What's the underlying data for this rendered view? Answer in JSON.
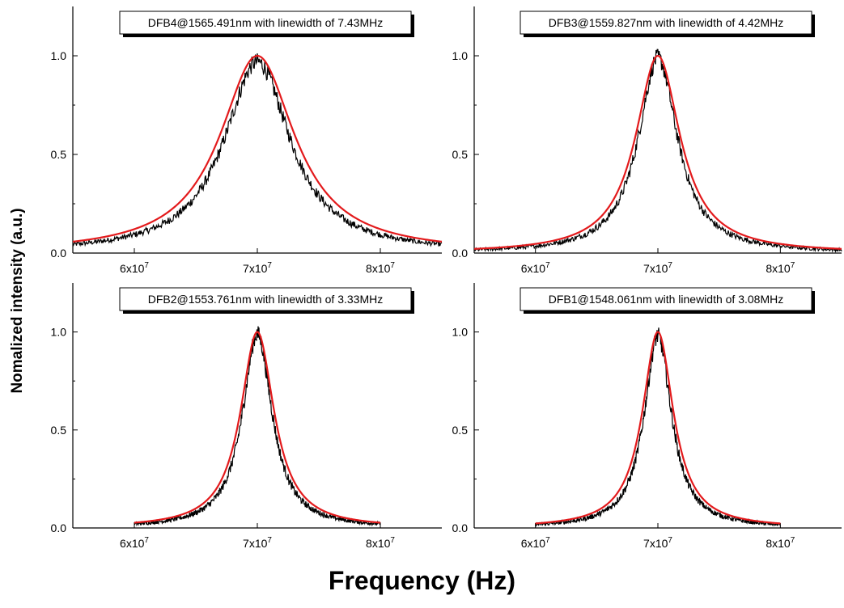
{
  "figure": {
    "ylabel": "Nomalized intensity (a.u.)",
    "xlabel": "Frequency (Hz)"
  },
  "chart_data": [
    {
      "type": "line",
      "title": "DFB4@1565.491nm with linewidth of 7.43MHz",
      "xlim": [
        55000000,
        85000000
      ],
      "ylim": [
        0,
        1.25
      ],
      "x_ticks": [
        {
          "value": 60000000,
          "mantissa": "6x10",
          "exp": "7"
        },
        {
          "value": 70000000,
          "mantissa": "7x10",
          "exp": "7"
        },
        {
          "value": 80000000,
          "mantissa": "8x10",
          "exp": "7"
        }
      ],
      "y_ticks": [
        {
          "value": 0,
          "label": "0.0"
        },
        {
          "value": 0.5,
          "label": "0.5"
        },
        {
          "value": 1.0,
          "label": "1.0"
        }
      ],
      "center": 70000000,
      "linewidth_MHz": 7.43,
      "x_range": [
        55000000,
        85000000
      ],
      "series": [
        {
          "kind": "measured",
          "color": "#000000",
          "peak": 0.97
        },
        {
          "kind": "lorentzian-fit",
          "color": "#e31a1c",
          "peak": 1.0
        }
      ]
    },
    {
      "type": "line",
      "title": "DFB3@1559.827nm with linewidth of 4.42MHz",
      "xlim": [
        55000000,
        85000000
      ],
      "ylim": [
        0,
        1.25
      ],
      "x_ticks": [
        {
          "value": 60000000,
          "mantissa": "6x10",
          "exp": "7"
        },
        {
          "value": 70000000,
          "mantissa": "7x10",
          "exp": "7"
        },
        {
          "value": 80000000,
          "mantissa": "8x10",
          "exp": "7"
        }
      ],
      "y_ticks": [
        {
          "value": 0,
          "label": "0.0"
        },
        {
          "value": 0.5,
          "label": "0.5"
        },
        {
          "value": 1.0,
          "label": "1.0"
        }
      ],
      "center": 70000000,
      "linewidth_MHz": 4.42,
      "x_range": [
        55000000,
        85000000
      ],
      "series": [
        {
          "kind": "measured",
          "color": "#000000",
          "peak": 0.99
        },
        {
          "kind": "lorentzian-fit",
          "color": "#e31a1c",
          "peak": 1.0
        }
      ]
    },
    {
      "type": "line",
      "title": "DFB2@1553.761nm with linewidth of 3.33MHz",
      "xlim": [
        55000000,
        85000000
      ],
      "ylim": [
        0,
        1.25
      ],
      "x_ticks": [
        {
          "value": 60000000,
          "mantissa": "6x10",
          "exp": "7"
        },
        {
          "value": 70000000,
          "mantissa": "7x10",
          "exp": "7"
        },
        {
          "value": 80000000,
          "mantissa": "8x10",
          "exp": "7"
        }
      ],
      "y_ticks": [
        {
          "value": 0,
          "label": "0.0"
        },
        {
          "value": 0.5,
          "label": "0.5"
        },
        {
          "value": 1.0,
          "label": "1.0"
        }
      ],
      "center": 70000000,
      "linewidth_MHz": 3.33,
      "x_range": [
        60000000,
        80000000
      ],
      "series": [
        {
          "kind": "measured",
          "color": "#000000",
          "peak": 0.99
        },
        {
          "kind": "lorentzian-fit",
          "color": "#e31a1c",
          "peak": 1.0
        }
      ]
    },
    {
      "type": "line",
      "title": "DFB1@1548.061nm with linewidth of 3.08MHz",
      "xlim": [
        55000000,
        85000000
      ],
      "ylim": [
        0,
        1.25
      ],
      "x_ticks": [
        {
          "value": 60000000,
          "mantissa": "6x10",
          "exp": "7"
        },
        {
          "value": 70000000,
          "mantissa": "7x10",
          "exp": "7"
        },
        {
          "value": 80000000,
          "mantissa": "8x10",
          "exp": "7"
        }
      ],
      "y_ticks": [
        {
          "value": 0,
          "label": "0.0"
        },
        {
          "value": 0.5,
          "label": "0.5"
        },
        {
          "value": 1.0,
          "label": "1.0"
        }
      ],
      "center": 70000000,
      "linewidth_MHz": 3.08,
      "x_range": [
        60000000,
        80000000
      ],
      "series": [
        {
          "kind": "measured",
          "color": "#000000",
          "peak": 0.98
        },
        {
          "kind": "lorentzian-fit",
          "color": "#e31a1c",
          "peak": 1.0
        }
      ]
    }
  ]
}
